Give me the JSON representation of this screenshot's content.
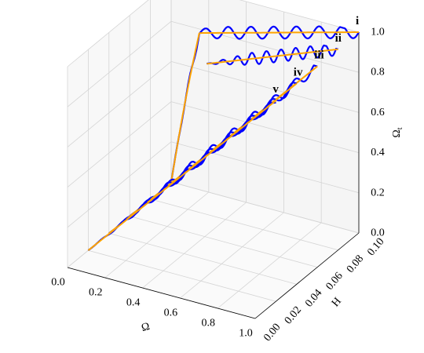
{
  "chart_data": {
    "type": "line",
    "projection": "3d",
    "xlabel": "Ω",
    "ylabel": "H",
    "zlabel": "Ω_t",
    "xlim": [
      0.0,
      1.0
    ],
    "ylim": [
      0.0,
      0.1
    ],
    "zlim": [
      0.0,
      1.0
    ],
    "x_ticks": [
      "0.0",
      "0.2",
      "0.4",
      "0.6",
      "0.8",
      "1.0"
    ],
    "y_ticks": [
      "0.00",
      "0.02",
      "0.04",
      "0.06",
      "0.08",
      "0.10"
    ],
    "z_ticks": [
      "0.0",
      "0.2",
      "0.4",
      "0.6",
      "0.8",
      "1.0"
    ],
    "grid": true,
    "colors": {
      "numerical": "#0000ff",
      "fit": "#ffa500"
    },
    "series": [
      {
        "label": "i",
        "H": 0.1,
        "knee": [
          0.15,
          0.78
        ],
        "end": [
          1.0,
          1.0
        ],
        "osc": 0.03
      },
      {
        "label": "ii",
        "H": 0.08,
        "start": [
          0.3,
          0.75
        ],
        "end": [
          1.0,
          1.0
        ],
        "osc": 0.03
      },
      {
        "label": "iii",
        "H": 0.06,
        "start": [
          0.0,
          0.0
        ],
        "end": [
          1.0,
          1.0
        ],
        "osc": 0.025
      },
      {
        "label": "iv",
        "H": 0.04,
        "start": [
          0.0,
          0.0
        ],
        "end": [
          1.0,
          1.0
        ],
        "osc": 0.02
      },
      {
        "label": "v",
        "H": 0.02,
        "start": [
          0.0,
          0.0
        ],
        "end": [
          1.0,
          1.0
        ],
        "osc": 0.012
      }
    ]
  }
}
